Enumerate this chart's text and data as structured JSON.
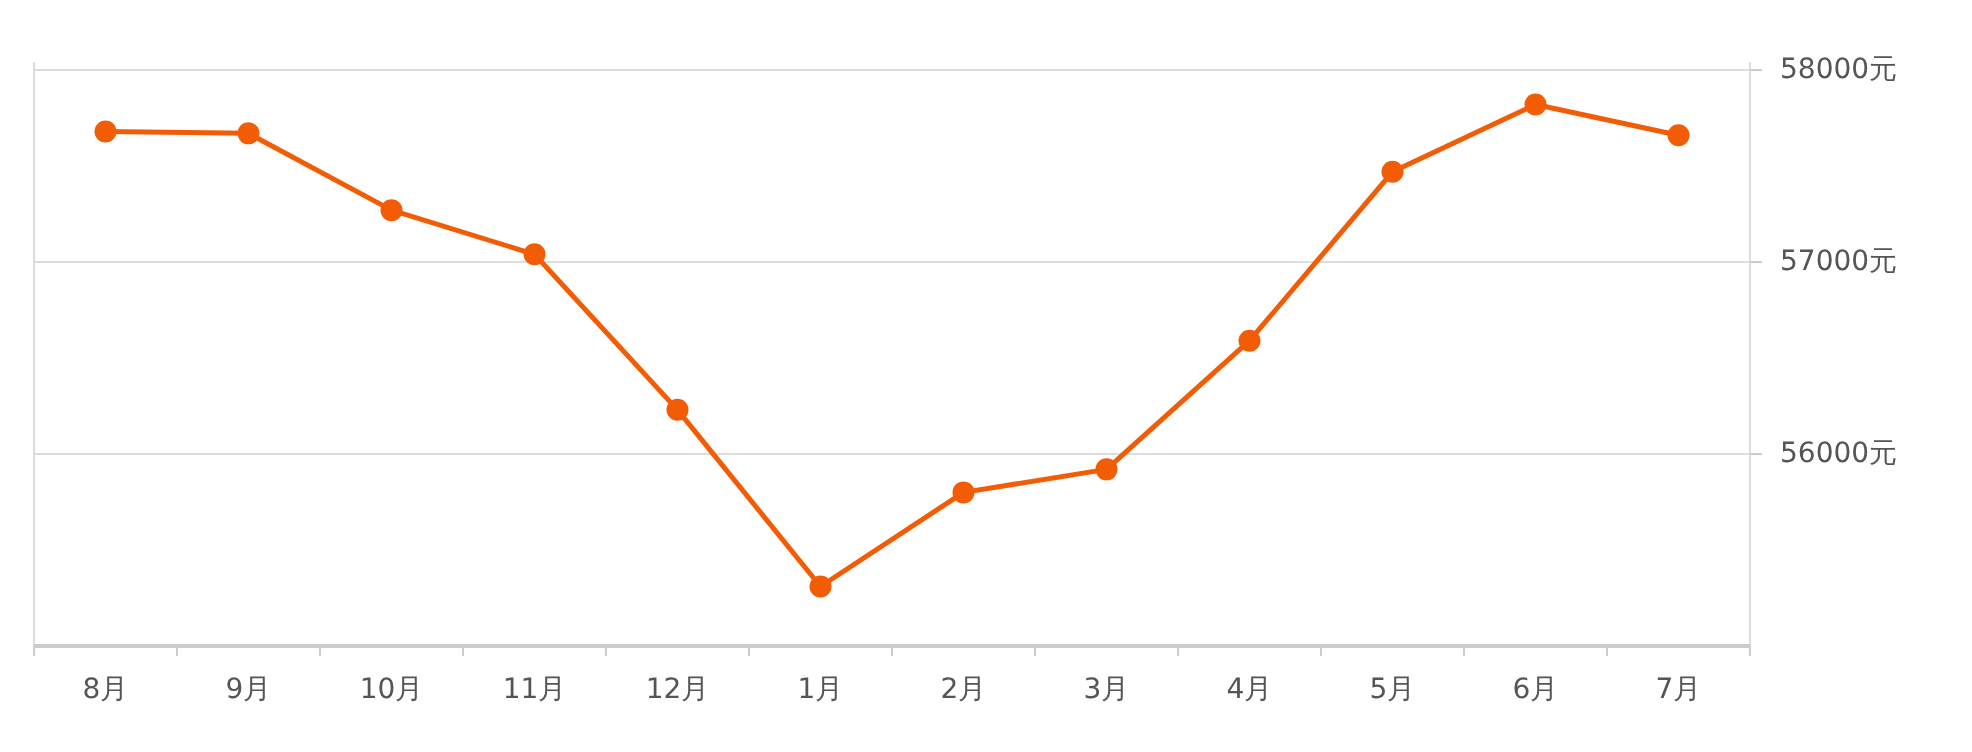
{
  "chart_data": {
    "type": "line",
    "categories": [
      "8月",
      "9月",
      "10月",
      "11月",
      "12月",
      "1月",
      "2月",
      "3月",
      "4月",
      "5月",
      "6月",
      "7月"
    ],
    "series": [
      {
        "color": "#f25c05",
        "values": [
          57680,
          57670,
          57270,
          57040,
          56230,
          55310,
          55800,
          55920,
          56590,
          57470,
          57820,
          57660
        ]
      }
    ],
    "ylim": [
      55000,
      58000
    ],
    "yticks": [
      {
        "value": 56000,
        "label": "56000元"
      },
      {
        "value": 57000,
        "label": "57000元"
      },
      {
        "value": 58000,
        "label": "58000元"
      }
    ],
    "grid": "y",
    "marker": "circle"
  }
}
